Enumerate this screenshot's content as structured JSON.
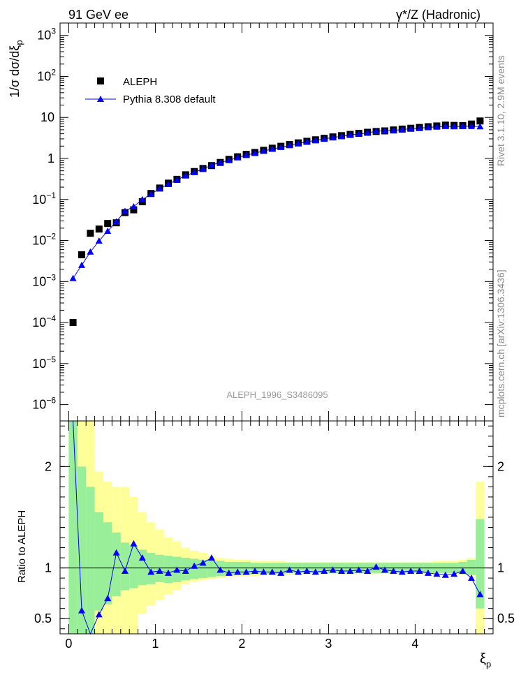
{
  "header": {
    "left": "91 GeV ee",
    "right": "γ*/Z (Hadronic)"
  },
  "side": {
    "top": "Rivet 3.1.10,  2.9M events",
    "bottom": "mcplots.cern.ch [arXiv:1306.3436]"
  },
  "watermark": "ALEPH_1996_S3486095",
  "legend": [
    {
      "label": "ALEPH",
      "marker": "square",
      "color": "#000000"
    },
    {
      "label": "Pythia 8.308 default",
      "marker": "triangle",
      "color": "#0000ff"
    }
  ],
  "colors": {
    "data": "#000000",
    "mc": "#0000ff",
    "band_inner": "#99ee99",
    "band_outer": "#ffff99"
  },
  "chart_data": [
    {
      "type": "scatter",
      "title": "",
      "xlabel": "ξ_p",
      "ylabel": "1/σ dσ/dξ_p",
      "yscale": "log",
      "xlim": [
        -0.1,
        4.9
      ],
      "ylim": [
        4e-07,
        2000
      ],
      "y_ticks": [
        {
          "v": 1e-06,
          "label": "10",
          "exp": "−6"
        },
        {
          "v": 1e-05,
          "label": "10",
          "exp": "−5"
        },
        {
          "v": 0.0001,
          "label": "10",
          "exp": "−4"
        },
        {
          "v": 0.001,
          "label": "10",
          "exp": "−3"
        },
        {
          "v": 0.01,
          "label": "10",
          "exp": "−2"
        },
        {
          "v": 0.1,
          "label": "10",
          "exp": "−1"
        },
        {
          "v": 1,
          "label": "1",
          "exp": ""
        },
        {
          "v": 10,
          "label": "10",
          "exp": ""
        },
        {
          "v": 100,
          "label": "10",
          "exp": "2"
        },
        {
          "v": 1000,
          "label": "10",
          "exp": "3"
        }
      ],
      "x": [
        0.05,
        0.15,
        0.25,
        0.35,
        0.45,
        0.55,
        0.65,
        0.75,
        0.85,
        0.95,
        1.05,
        1.15,
        1.25,
        1.35,
        1.45,
        1.55,
        1.65,
        1.75,
        1.85,
        1.95,
        2.05,
        2.15,
        2.25,
        2.35,
        2.45,
        2.55,
        2.65,
        2.75,
        2.85,
        2.95,
        3.05,
        3.15,
        3.25,
        3.35,
        3.45,
        3.55,
        3.65,
        3.75,
        3.85,
        3.95,
        4.05,
        4.15,
        4.25,
        4.35,
        4.45,
        4.55,
        4.65,
        4.75
      ],
      "series": [
        {
          "name": "ALEPH",
          "values": [
            0.0001,
            0.0045,
            0.015,
            0.019,
            0.026,
            0.027,
            0.048,
            0.056,
            0.088,
            0.14,
            0.19,
            0.25,
            0.31,
            0.4,
            0.48,
            0.57,
            0.67,
            0.8,
            0.95,
            1.1,
            1.26,
            1.4,
            1.58,
            1.78,
            1.98,
            2.18,
            2.4,
            2.62,
            2.85,
            3.1,
            3.35,
            3.6,
            3.85,
            4.1,
            4.35,
            4.55,
            4.7,
            4.95,
            5.2,
            5.45,
            5.7,
            5.95,
            6.2,
            6.5,
            6.4,
            6.3,
            6.9,
            8.2
          ]
        },
        {
          "name": "Pythia 8.308 default",
          "values": [
            0.0012,
            0.0025,
            0.0053,
            0.0098,
            0.017,
            0.029,
            0.052,
            0.067,
            0.1,
            0.135,
            0.185,
            0.235,
            0.3,
            0.38,
            0.46,
            0.55,
            0.69,
            0.8,
            0.9,
            1.05,
            1.2,
            1.35,
            1.52,
            1.7,
            1.88,
            2.08,
            2.3,
            2.55,
            2.75,
            3.0,
            3.25,
            3.45,
            3.75,
            3.95,
            4.2,
            4.6,
            4.7,
            4.85,
            5.05,
            5.3,
            5.45,
            5.75,
            5.9,
            6.1,
            6.0,
            6.1,
            6.1,
            6.0
          ]
        }
      ]
    },
    {
      "type": "line",
      "xlabel": "ξ_p",
      "ylabel": "Ratio to ALEPH",
      "xlim": [
        -0.1,
        4.9
      ],
      "ylim": [
        0.35,
        2.45
      ],
      "x_ticks": [
        0,
        1,
        2,
        3,
        4
      ],
      "y_ticks": [
        0.5,
        1,
        2
      ],
      "x": [
        0.05,
        0.15,
        0.25,
        0.35,
        0.45,
        0.55,
        0.65,
        0.75,
        0.85,
        0.95,
        1.05,
        1.15,
        1.25,
        1.35,
        1.45,
        1.55,
        1.65,
        1.75,
        1.85,
        1.95,
        2.05,
        2.15,
        2.25,
        2.35,
        2.45,
        2.55,
        2.65,
        2.75,
        2.85,
        2.95,
        3.05,
        3.15,
        3.25,
        3.35,
        3.45,
        3.55,
        3.65,
        3.75,
        3.85,
        3.95,
        4.05,
        4.15,
        4.25,
        4.35,
        4.45,
        4.55,
        4.65,
        4.75
      ],
      "series": [
        {
          "name": "Pythia 8.308 default",
          "values": [
            3.0,
            0.58,
            0.34,
            0.54,
            0.7,
            1.15,
            0.97,
            1.24,
            1.1,
            0.96,
            0.97,
            0.95,
            0.98,
            0.97,
            1.02,
            1.05,
            1.1,
            0.98,
            0.95,
            0.96,
            0.96,
            0.97,
            0.96,
            0.96,
            0.95,
            0.98,
            0.96,
            0.97,
            0.96,
            0.97,
            0.98,
            0.97,
            0.97,
            0.98,
            0.97,
            1.01,
            0.98,
            0.97,
            0.96,
            0.97,
            0.97,
            0.95,
            0.94,
            0.93,
            0.94,
            0.97,
            0.9,
            0.74
          ]
        },
        {
          "name": "band_inner_lo",
          "values": [
            0.35,
            0.35,
            0.35,
            0.58,
            0.64,
            0.72,
            0.78,
            0.8,
            0.83,
            0.84,
            0.86,
            0.85,
            0.86,
            0.88,
            0.89,
            0.9,
            0.91,
            0.92,
            0.93,
            0.93,
            0.93,
            0.94,
            0.94,
            0.94,
            0.94,
            0.95,
            0.95,
            0.95,
            0.95,
            0.95,
            0.95,
            0.95,
            0.95,
            0.95,
            0.95,
            0.95,
            0.95,
            0.95,
            0.95,
            0.95,
            0.95,
            0.95,
            0.95,
            0.95,
            0.95,
            0.94,
            0.93,
            0.6
          ]
        },
        {
          "name": "band_inner_hi",
          "values": [
            2.45,
            2.0,
            1.8,
            1.55,
            1.45,
            1.35,
            1.25,
            1.22,
            1.18,
            1.15,
            1.13,
            1.12,
            1.11,
            1.1,
            1.09,
            1.08,
            1.07,
            1.07,
            1.06,
            1.06,
            1.06,
            1.05,
            1.05,
            1.05,
            1.05,
            1.05,
            1.05,
            1.05,
            1.05,
            1.05,
            1.05,
            1.05,
            1.05,
            1.05,
            1.05,
            1.05,
            1.05,
            1.05,
            1.05,
            1.05,
            1.05,
            1.05,
            1.05,
            1.05,
            1.05,
            1.06,
            1.08,
            1.48
          ]
        },
        {
          "name": "band_outer_lo",
          "values": [
            0.35,
            0.35,
            0.35,
            0.35,
            0.35,
            0.35,
            0.35,
            0.35,
            0.55,
            0.63,
            0.68,
            0.74,
            0.78,
            0.84,
            0.86,
            0.88,
            0.89,
            0.9,
            0.91,
            0.92,
            0.92,
            0.92,
            0.93,
            0.93,
            0.93,
            0.93,
            0.93,
            0.94,
            0.94,
            0.94,
            0.94,
            0.94,
            0.94,
            0.94,
            0.94,
            0.94,
            0.94,
            0.94,
            0.94,
            0.94,
            0.94,
            0.94,
            0.94,
            0.94,
            0.94,
            0.93,
            0.92,
            0.35
          ]
        },
        {
          "name": "band_outer_hi",
          "values": [
            2.45,
            2.45,
            2.45,
            1.95,
            1.85,
            1.8,
            1.8,
            1.7,
            1.55,
            1.45,
            1.38,
            1.3,
            1.26,
            1.2,
            1.17,
            1.15,
            1.12,
            1.1,
            1.09,
            1.08,
            1.08,
            1.07,
            1.07,
            1.07,
            1.07,
            1.06,
            1.06,
            1.06,
            1.06,
            1.06,
            1.06,
            1.06,
            1.06,
            1.06,
            1.06,
            1.06,
            1.06,
            1.06,
            1.06,
            1.06,
            1.06,
            1.06,
            1.07,
            1.07,
            1.07,
            1.08,
            1.1,
            1.85
          ]
        }
      ]
    }
  ]
}
